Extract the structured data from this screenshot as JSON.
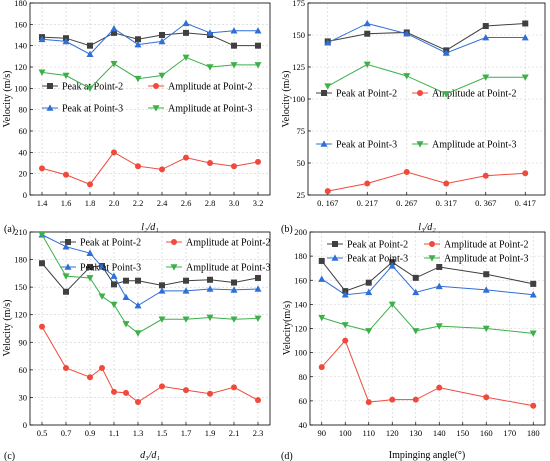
{
  "chart_data": [
    {
      "id": "a",
      "type": "line",
      "panel_label": "(a)",
      "xlabel": "l₂/d₁",
      "ylabel": "Velocity (m/s)",
      "x": [
        1.4,
        1.6,
        1.8,
        2.0,
        2.2,
        2.4,
        2.6,
        2.8,
        3.0,
        3.2
      ],
      "xticks": [
        "1.4",
        "1.6",
        "1.8",
        "2.0",
        "2.2",
        "2.4",
        "2.6",
        "2.8",
        "3.0",
        "3.2"
      ],
      "xlim": [
        1.3,
        3.3
      ],
      "ylim": [
        0,
        180
      ],
      "yticks": [
        0,
        20,
        40,
        60,
        80,
        100,
        120,
        140,
        160,
        180
      ],
      "grid": true,
      "series": [
        {
          "name": "Peak at Point-2",
          "color": "#404040",
          "marker": "square",
          "values": [
            148,
            147,
            140,
            152,
            146,
            150,
            152,
            150,
            140,
            140
          ]
        },
        {
          "name": "Amplitude at Point-2",
          "color": "#f04a3c",
          "marker": "circle",
          "values": [
            25,
            19,
            10,
            40,
            27,
            24,
            35,
            30,
            27,
            31
          ]
        },
        {
          "name": "Peak at Point-3",
          "color": "#2f6fd6",
          "marker": "triangle-up",
          "values": [
            146,
            144,
            132,
            156,
            141,
            144,
            161,
            152,
            154,
            154
          ]
        },
        {
          "name": "Amplitude at Point-3",
          "color": "#3db04a",
          "marker": "triangle-down",
          "values": [
            115,
            112,
            100,
            123,
            109,
            112,
            129,
            120,
            122,
            122
          ]
        }
      ]
    },
    {
      "id": "b",
      "type": "line",
      "panel_label": "(b)",
      "xlabel": "l₃/d₂",
      "ylabel": "Velocity (m/s)",
      "x": [
        0.167,
        0.217,
        0.267,
        0.317,
        0.367,
        0.417
      ],
      "xticks": [
        "0. 167",
        "0. 217",
        "0. 267",
        "0. 317",
        "0. 367",
        "0. 417"
      ],
      "xlim": [
        0.142,
        0.442
      ],
      "ylim": [
        25,
        175
      ],
      "yticks": [
        25,
        50,
        75,
        100,
        125,
        150,
        175
      ],
      "grid": true,
      "series": [
        {
          "name": "Peak at Point-2",
          "color": "#404040",
          "marker": "square",
          "values": [
            145,
            151,
            152,
            138,
            157,
            159
          ]
        },
        {
          "name": "Amplitude at Point-2",
          "color": "#f04a3c",
          "marker": "circle",
          "values": [
            28,
            34,
            43,
            34,
            40,
            42
          ]
        },
        {
          "name": "Peak at Point-3",
          "color": "#2f6fd6",
          "marker": "triangle-up",
          "values": [
            144,
            159,
            151,
            136,
            148,
            148
          ]
        },
        {
          "name": "Amplitude at Point-3",
          "color": "#3db04a",
          "marker": "triangle-down",
          "values": [
            110,
            127,
            118,
            104,
            117,
            117
          ]
        }
      ]
    },
    {
      "id": "c",
      "type": "line",
      "panel_label": "(c)",
      "xlabel": "d₃/d₁",
      "ylabel": "Velocity (m/s)",
      "x": [
        0.5,
        0.7,
        0.9,
        1.0,
        1.1,
        1.2,
        1.3,
        1.5,
        1.7,
        1.9,
        2.1,
        2.3
      ],
      "xticks": [
        "0.5",
        "0.7",
        "0.9",
        "1.1",
        "1.3",
        "1.5",
        "1.7",
        "1.9",
        "2.1",
        "2.3"
      ],
      "xtick_values": [
        0.5,
        0.7,
        0.9,
        1.1,
        1.3,
        1.5,
        1.7,
        1.9,
        2.1,
        2.3
      ],
      "xlim": [
        0.4,
        2.4
      ],
      "ylim": [
        0,
        210
      ],
      "yticks": [
        0,
        30,
        60,
        90,
        120,
        150,
        180,
        210
      ],
      "grid": true,
      "series": [
        {
          "name": "Peak at Point-2",
          "color": "#404040",
          "marker": "square",
          "values": [
            176,
            145,
            172,
            173,
            153,
            157,
            157,
            152,
            157,
            158,
            155,
            160
          ]
        },
        {
          "name": "Amplitude at Point-2",
          "color": "#f04a3c",
          "marker": "circle",
          "values": [
            107,
            62,
            52,
            62,
            36,
            35,
            25,
            42,
            38,
            34,
            41,
            27
          ]
        },
        {
          "name": "Peak at Point-3",
          "color": "#2f6fd6",
          "marker": "triangle-up",
          "values": [
            207,
            194,
            187,
            172,
            162,
            139,
            130,
            146,
            146,
            148,
            147,
            148
          ]
        },
        {
          "name": "Amplitude at Point-3",
          "color": "#3db04a",
          "marker": "triangle-down",
          "values": [
            207,
            162,
            160,
            140,
            131,
            110,
            100,
            115,
            115,
            117,
            115,
            116
          ]
        }
      ]
    },
    {
      "id": "d",
      "type": "line",
      "panel_label": "(d)",
      "xlabel": "Impinging angle(°)",
      "ylabel": "Velocity(m/s)",
      "x": [
        90,
        100,
        110,
        120,
        130,
        140,
        160,
        180
      ],
      "xticks": [
        "90",
        "100",
        "110",
        "120",
        "130",
        "140",
        "150",
        "160",
        "170",
        "180"
      ],
      "xtick_values": [
        90,
        100,
        110,
        120,
        130,
        140,
        150,
        160,
        170,
        180
      ],
      "xlim": [
        85,
        185
      ],
      "ylim": [
        40,
        200
      ],
      "yticks": [
        40,
        60,
        80,
        100,
        120,
        140,
        160,
        180,
        200
      ],
      "grid": true,
      "series": [
        {
          "name": "Peak at Point-2",
          "color": "#404040",
          "marker": "square",
          "values": [
            176,
            151,
            158,
            175,
            162,
            171,
            165,
            157
          ]
        },
        {
          "name": "Amplitude at Point-2",
          "color": "#f04a3c",
          "marker": "circle",
          "values": [
            88,
            110,
            59,
            61,
            61,
            71,
            63,
            56
          ]
        },
        {
          "name": "Peak at Point-3",
          "color": "#2f6fd6",
          "marker": "triangle-up",
          "values": [
            161,
            148,
            150,
            172,
            150,
            155,
            152,
            148
          ]
        },
        {
          "name": "Amplitude at Point-3",
          "color": "#3db04a",
          "marker": "triangle-down",
          "values": [
            129,
            123,
            118,
            140,
            118,
            122,
            120,
            116
          ]
        }
      ]
    }
  ]
}
